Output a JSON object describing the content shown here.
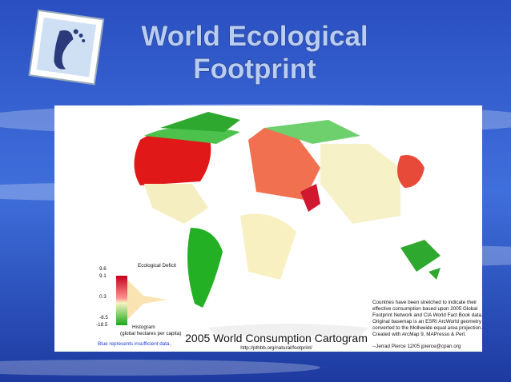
{
  "slide": {
    "title_lines": [
      "World Ecological",
      "Footprint"
    ]
  },
  "map": {
    "legend": {
      "title": "Ecological Deficit",
      "scale_labels": [
        "9.6",
        "9.1",
        "0.3",
        "-8.5",
        "-18.5"
      ],
      "histogram_lines": [
        "Histogram",
        "(global hectares per capita)"
      ],
      "note": "Blue represents insufficient data."
    },
    "caption": {
      "title": "2005 World Consumption Cartogram",
      "url": "http://pthbb.org/natural/footprint/"
    },
    "description_lines": [
      "Countries have been stretched to indicate their",
      "effective consumption based upon 2005 Global",
      "Footprint Network and CIA World Fact Book data.",
      "Original basemap is an ESRI ArcWorld geometry",
      "converted to the Mollweide equal area projection.",
      "Created with ArcMap 9, MAPresso & Perl."
    ],
    "credit": "--Jerrad Pierce 12/05 jpierce@cpan.org"
  }
}
